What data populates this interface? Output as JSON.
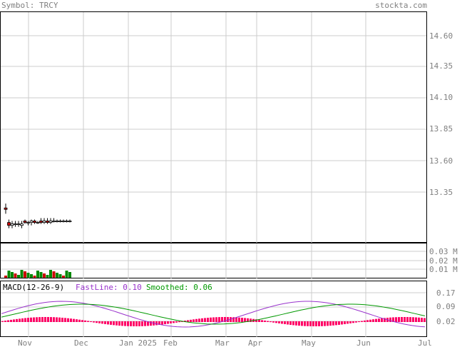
{
  "header": {
    "symbol_label": "Symbol: TRCY",
    "site": "stockta.com"
  },
  "colors": {
    "up": "#ffffff",
    "down": "#cc0000",
    "volume_up": "#008800",
    "volume_down": "#cc0000",
    "grid": "#cccccc",
    "label": "#808080",
    "fast_line": "#9933cc",
    "smoothed_line": "#009900",
    "histogram": "#ff0066"
  },
  "chart_data": [
    {
      "type": "candlestick",
      "title": "",
      "y_ticks": [
        "13.35",
        "13.60",
        "13.85",
        "14.10",
        "14.35",
        "14.60"
      ],
      "ylim": [
        13.16,
        14.75
      ],
      "x_ticks": [
        "Nov",
        "Dec",
        "Jan 2025",
        "Feb",
        "Mar",
        "Apr",
        "May",
        "Jun",
        "Jul"
      ],
      "grid": true,
      "candles": [
        {
          "open": 13.4,
          "high": 13.43,
          "low": 13.36,
          "close": 13.39
        },
        {
          "open": 13.3,
          "high": 13.32,
          "low": 13.26,
          "close": 13.28
        },
        {
          "open": 13.28,
          "high": 13.31,
          "low": 13.26,
          "close": 13.29
        },
        {
          "open": 13.29,
          "high": 13.31,
          "low": 13.27,
          "close": 13.29
        },
        {
          "open": 13.29,
          "high": 13.31,
          "low": 13.27,
          "close": 13.29
        },
        {
          "open": 13.28,
          "high": 13.31,
          "low": 13.26,
          "close": 13.29
        },
        {
          "open": 13.31,
          "high": 13.32,
          "low": 13.29,
          "close": 13.3
        },
        {
          "open": 13.3,
          "high": 13.31,
          "low": 13.28,
          "close": 13.3
        },
        {
          "open": 13.3,
          "high": 13.32,
          "low": 13.28,
          "close": 13.31
        },
        {
          "open": 13.31,
          "high": 13.32,
          "low": 13.29,
          "close": 13.3
        },
        {
          "open": 13.3,
          "high": 13.31,
          "low": 13.29,
          "close": 13.3
        },
        {
          "open": 13.31,
          "high": 13.33,
          "low": 13.29,
          "close": 13.3
        },
        {
          "open": 13.3,
          "high": 13.33,
          "low": 13.29,
          "close": 13.31
        },
        {
          "open": 13.31,
          "high": 13.33,
          "low": 13.29,
          "close": 13.3
        },
        {
          "open": 13.3,
          "high": 13.33,
          "low": 13.29,
          "close": 13.31
        },
        {
          "open": 13.31,
          "high": 13.33,
          "low": 13.3,
          "close": 13.31
        },
        {
          "open": 13.31,
          "high": 13.32,
          "low": 13.3,
          "close": 13.31
        },
        {
          "open": 13.31,
          "high": 13.32,
          "low": 13.3,
          "close": 13.31
        },
        {
          "open": 13.31,
          "high": 13.32,
          "low": 13.3,
          "close": 13.31
        },
        {
          "open": 13.31,
          "high": 13.32,
          "low": 13.3,
          "close": 13.31
        },
        {
          "open": 13.31,
          "high": 13.32,
          "low": 13.3,
          "close": 13.31
        }
      ]
    },
    {
      "type": "bar",
      "title": "",
      "y_ticks": [
        "0.03 M",
        "0.02 M",
        "0.01 M"
      ],
      "ylim": [
        0,
        0.035
      ]
    },
    {
      "type": "line",
      "title": "MACD(12-26-9)",
      "legend": [
        {
          "label": "FastLine: 0.10"
        },
        {
          "label": "Smoothed: 0.06"
        }
      ],
      "y_ticks": [
        "0.17",
        "0.09",
        "0.02"
      ],
      "ylim": [
        -0.12,
        0.2
      ]
    }
  ]
}
